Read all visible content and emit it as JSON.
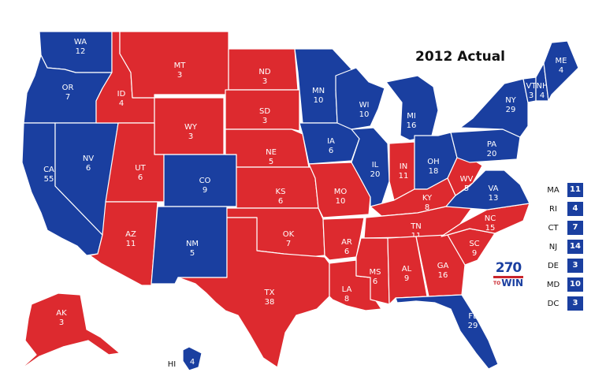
{
  "title": "2012 Actual",
  "colors": {
    "dem": "#1a3fa0",
    "rep": "#dd2a2f"
  },
  "logo": {
    "number": "270",
    "to": "TO",
    "word": "WIN"
  },
  "states": [
    {
      "abbr": "WA",
      "ev": "12",
      "party": "dem"
    },
    {
      "abbr": "OR",
      "ev": "7",
      "party": "dem"
    },
    {
      "abbr": "CA",
      "ev": "55",
      "party": "dem"
    },
    {
      "abbr": "NV",
      "ev": "6",
      "party": "dem"
    },
    {
      "abbr": "ID",
      "ev": "4",
      "party": "rep"
    },
    {
      "abbr": "MT",
      "ev": "3",
      "party": "rep"
    },
    {
      "abbr": "WY",
      "ev": "3",
      "party": "rep"
    },
    {
      "abbr": "UT",
      "ev": "6",
      "party": "rep"
    },
    {
      "abbr": "AZ",
      "ev": "11",
      "party": "rep"
    },
    {
      "abbr": "CO",
      "ev": "9",
      "party": "dem"
    },
    {
      "abbr": "NM",
      "ev": "5",
      "party": "dem"
    },
    {
      "abbr": "ND",
      "ev": "3",
      "party": "rep"
    },
    {
      "abbr": "SD",
      "ev": "3",
      "party": "rep"
    },
    {
      "abbr": "NE",
      "ev": "5",
      "party": "rep"
    },
    {
      "abbr": "KS",
      "ev": "6",
      "party": "rep"
    },
    {
      "abbr": "OK",
      "ev": "7",
      "party": "rep"
    },
    {
      "abbr": "TX",
      "ev": "38",
      "party": "rep"
    },
    {
      "abbr": "MN",
      "ev": "10",
      "party": "dem"
    },
    {
      "abbr": "IA",
      "ev": "6",
      "party": "dem"
    },
    {
      "abbr": "MO",
      "ev": "10",
      "party": "rep"
    },
    {
      "abbr": "AR",
      "ev": "6",
      "party": "rep"
    },
    {
      "abbr": "LA",
      "ev": "8",
      "party": "rep"
    },
    {
      "abbr": "WI",
      "ev": "10",
      "party": "dem"
    },
    {
      "abbr": "IL",
      "ev": "20",
      "party": "dem"
    },
    {
      "abbr": "MI",
      "ev": "16",
      "party": "dem"
    },
    {
      "abbr": "IN",
      "ev": "11",
      "party": "rep"
    },
    {
      "abbr": "OH",
      "ev": "18",
      "party": "dem"
    },
    {
      "abbr": "KY",
      "ev": "8",
      "party": "rep"
    },
    {
      "abbr": "TN",
      "ev": "11",
      "party": "rep"
    },
    {
      "abbr": "MS",
      "ev": "6",
      "party": "rep"
    },
    {
      "abbr": "AL",
      "ev": "9",
      "party": "rep"
    },
    {
      "abbr": "GA",
      "ev": "16",
      "party": "rep"
    },
    {
      "abbr": "FL",
      "ev": "29",
      "party": "dem"
    },
    {
      "abbr": "SC",
      "ev": "9",
      "party": "rep"
    },
    {
      "abbr": "NC",
      "ev": "15",
      "party": "rep"
    },
    {
      "abbr": "VA",
      "ev": "13",
      "party": "dem"
    },
    {
      "abbr": "WV",
      "ev": "5",
      "party": "rep"
    },
    {
      "abbr": "PA",
      "ev": "20",
      "party": "dem"
    },
    {
      "abbr": "NY",
      "ev": "29",
      "party": "dem"
    },
    {
      "abbr": "VT",
      "ev": "3",
      "party": "dem"
    },
    {
      "abbr": "NH",
      "ev": "4",
      "party": "dem"
    },
    {
      "abbr": "ME",
      "ev": "4",
      "party": "dem"
    },
    {
      "abbr": "AK",
      "ev": "3",
      "party": "rep"
    },
    {
      "abbr": "HI",
      "ev": "4",
      "party": "dem"
    }
  ],
  "small_states": [
    {
      "abbr": "MA",
      "ev": "11",
      "party": "dem"
    },
    {
      "abbr": "RI",
      "ev": "4",
      "party": "dem"
    },
    {
      "abbr": "CT",
      "ev": "7",
      "party": "dem"
    },
    {
      "abbr": "NJ",
      "ev": "14",
      "party": "dem"
    },
    {
      "abbr": "DE",
      "ev": "3",
      "party": "dem"
    },
    {
      "abbr": "MD",
      "ev": "10",
      "party": "dem"
    },
    {
      "abbr": "DC",
      "ev": "3",
      "party": "dem"
    }
  ]
}
